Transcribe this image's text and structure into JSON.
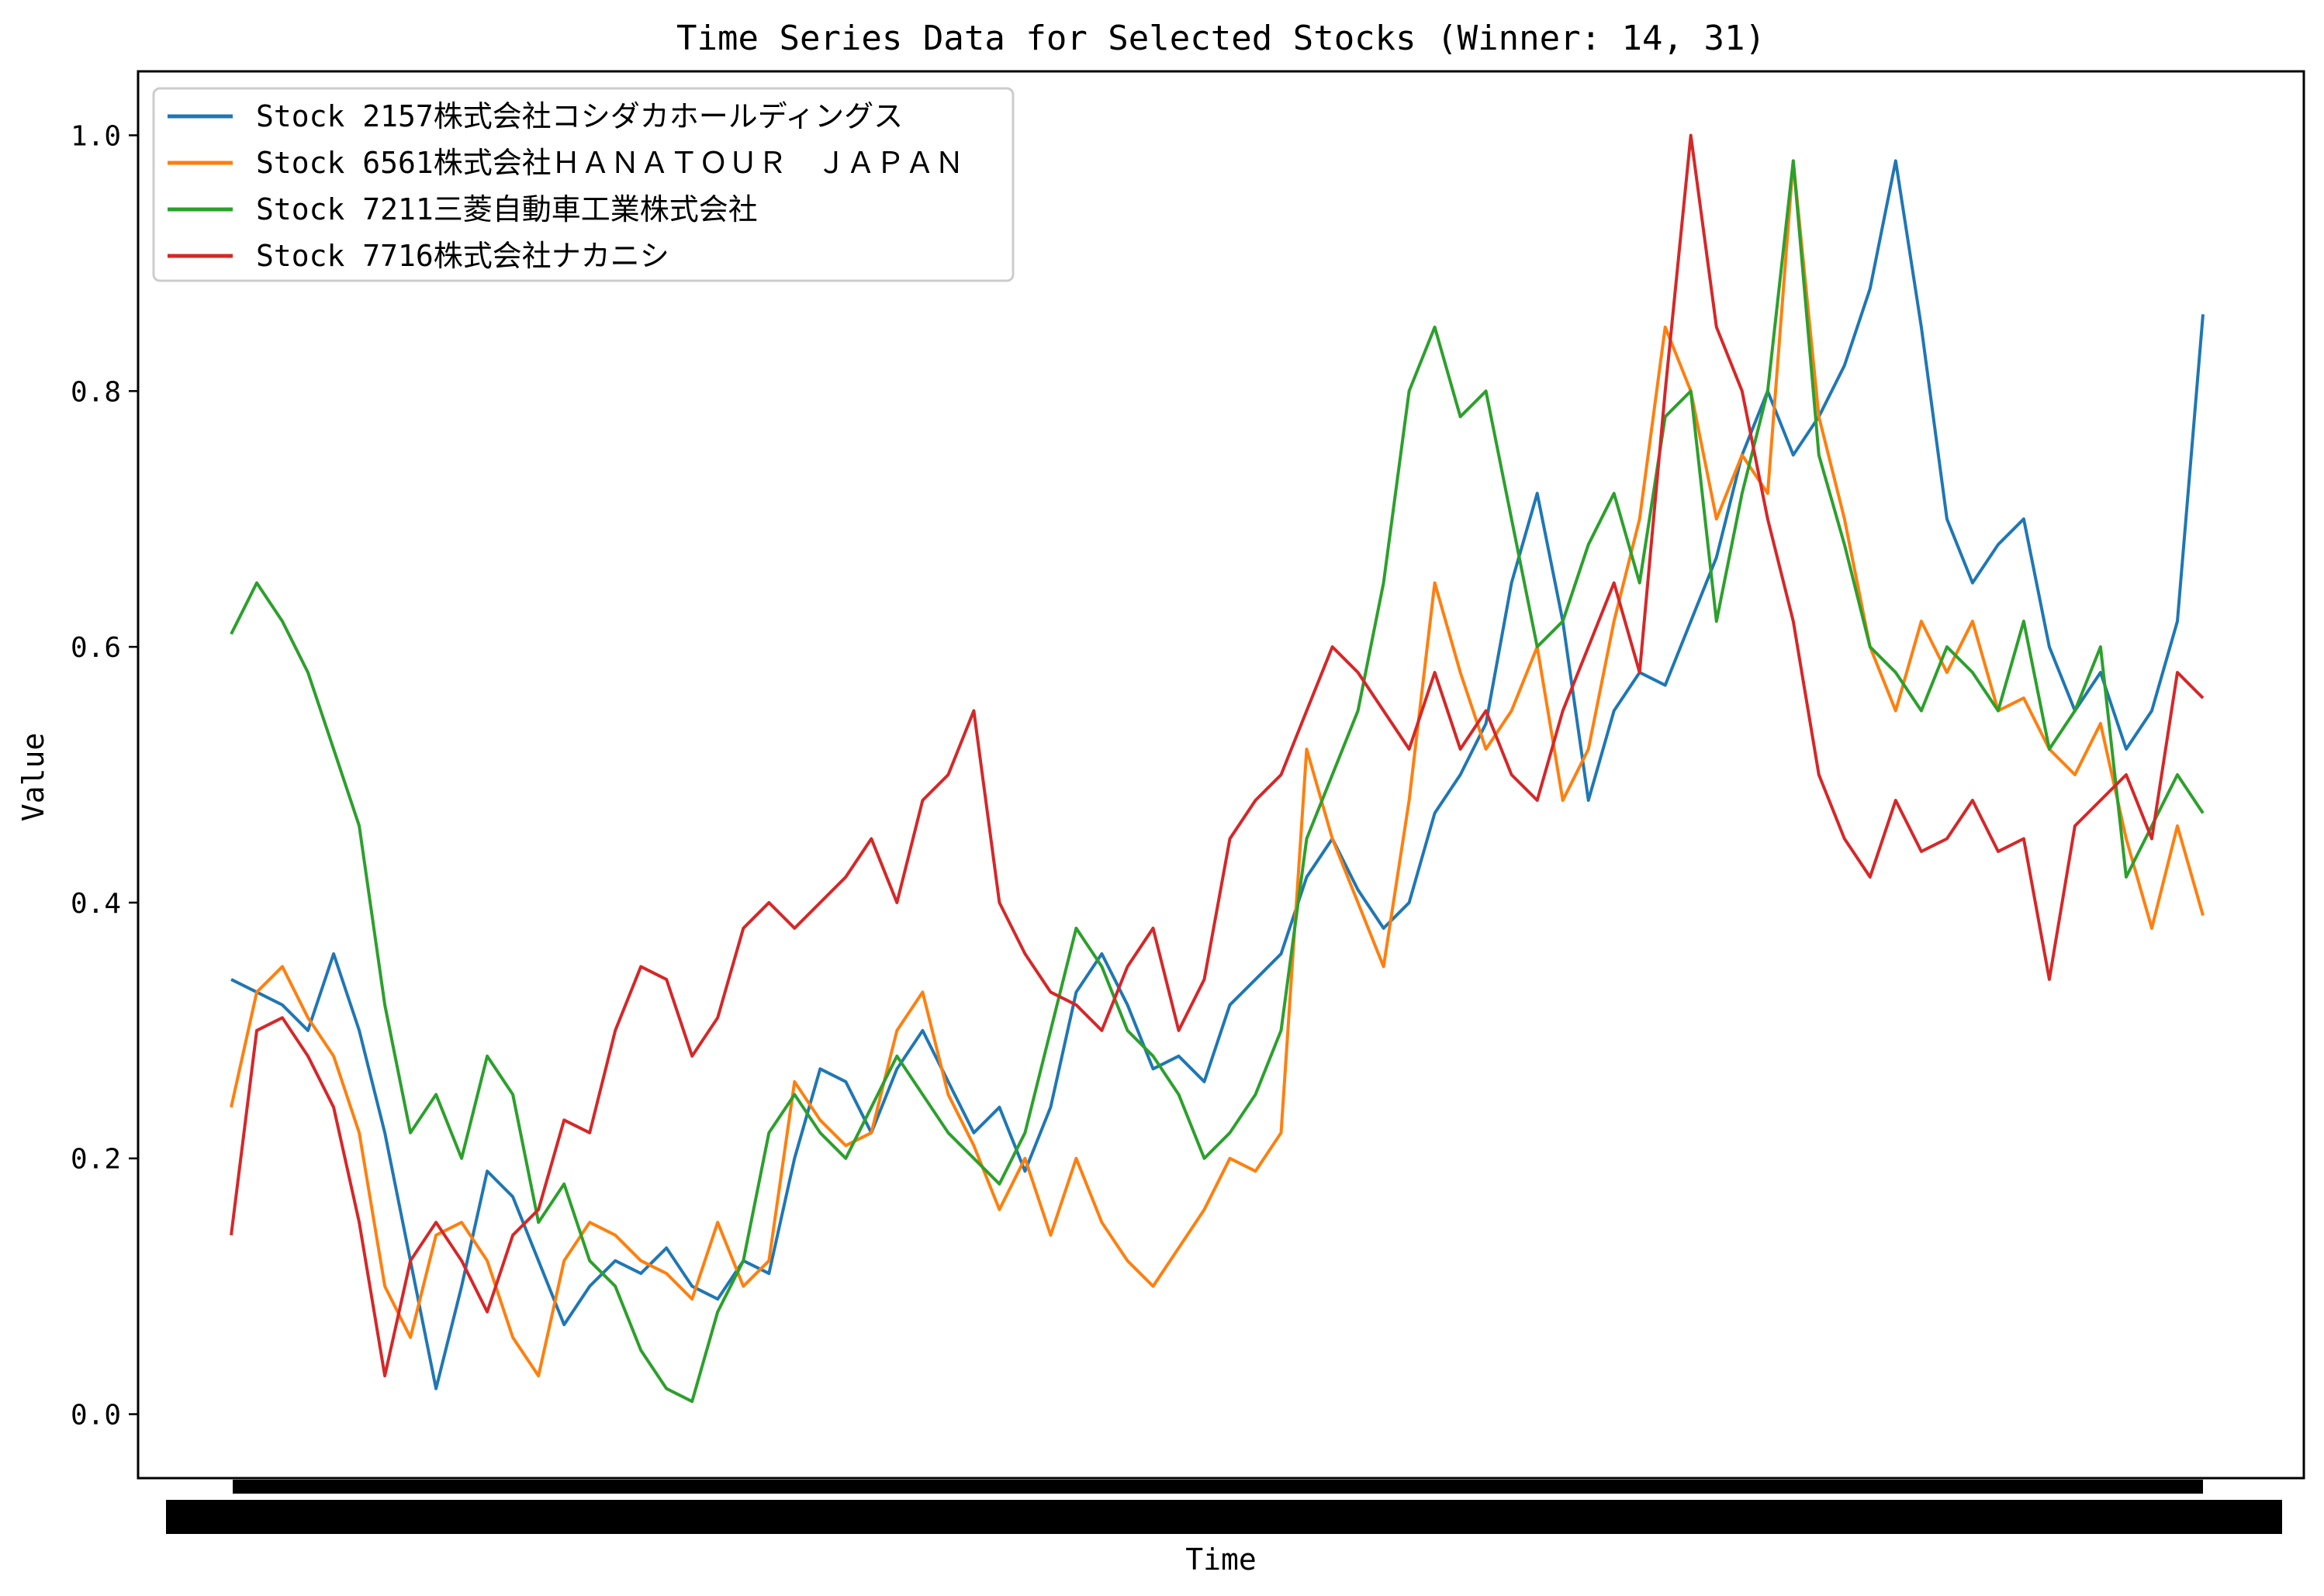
{
  "chart_data": {
    "type": "line",
    "title": "Time Series Data for Selected Stocks (Winner: 14, 31)",
    "xlabel": "Time",
    "ylabel": "Value",
    "ylim": [
      -0.05,
      1.05
    ],
    "yticks": [
      "0.0",
      "0.2",
      "0.4",
      "0.6",
      "0.8",
      "1.0"
    ],
    "x_tick_labels_note": "dense overlapping tick labels rendered as a solid black band",
    "grid": false,
    "legend_position": "top-left",
    "series": [
      {
        "name": "Stock 2157株式会社コシダカホールディングス",
        "color": "#1f77b4",
        "x": [
          0,
          20,
          40,
          60,
          80,
          100,
          120,
          140,
          160,
          180,
          200,
          220,
          240,
          260,
          280,
          300,
          320,
          340,
          360,
          380,
          400,
          420,
          440,
          460,
          480,
          500,
          520,
          540,
          560,
          580,
          600,
          620,
          640,
          660,
          680,
          700,
          720,
          740,
          760,
          780,
          800,
          820,
          840,
          860,
          880,
          900,
          920,
          940,
          960,
          980,
          1000,
          1020,
          1040,
          1060,
          1080,
          1100,
          1120,
          1140,
          1160,
          1180,
          1200,
          1220,
          1240,
          1260,
          1280,
          1300,
          1320,
          1340,
          1360,
          1380,
          1400,
          1420,
          1440,
          1460,
          1480,
          1500,
          1520,
          1540
        ],
        "values": [
          0.34,
          0.33,
          0.32,
          0.3,
          0.36,
          0.3,
          0.22,
          0.12,
          0.02,
          0.1,
          0.19,
          0.17,
          0.12,
          0.07,
          0.1,
          0.12,
          0.11,
          0.13,
          0.1,
          0.09,
          0.12,
          0.11,
          0.2,
          0.27,
          0.26,
          0.22,
          0.27,
          0.3,
          0.26,
          0.22,
          0.24,
          0.19,
          0.24,
          0.33,
          0.36,
          0.32,
          0.27,
          0.28,
          0.26,
          0.32,
          0.34,
          0.36,
          0.42,
          0.45,
          0.41,
          0.38,
          0.4,
          0.47,
          0.5,
          0.54,
          0.65,
          0.72,
          0.62,
          0.48,
          0.55,
          0.58,
          0.57,
          0.62,
          0.67,
          0.75,
          0.8,
          0.75,
          0.78,
          0.82,
          0.88,
          0.98,
          0.85,
          0.7,
          0.65,
          0.68,
          0.7,
          0.6,
          0.55,
          0.58,
          0.52,
          0.55,
          0.62,
          0.86
        ]
      },
      {
        "name": "Stock 6561株式会社ＨＡＮＡＴＯＵＲ　ＪＡＰＡＮ",
        "color": "#ff7f0e",
        "x": [
          0,
          20,
          40,
          60,
          80,
          100,
          120,
          140,
          160,
          180,
          200,
          220,
          240,
          260,
          280,
          300,
          320,
          340,
          360,
          380,
          400,
          420,
          440,
          460,
          480,
          500,
          520,
          540,
          560,
          580,
          600,
          620,
          640,
          660,
          680,
          700,
          720,
          740,
          760,
          780,
          800,
          820,
          840,
          860,
          880,
          900,
          920,
          940,
          960,
          980,
          1000,
          1020,
          1040,
          1060,
          1080,
          1100,
          1120,
          1140,
          1160,
          1180,
          1200,
          1220,
          1240,
          1260,
          1280,
          1300,
          1320,
          1340,
          1360,
          1380,
          1400,
          1420,
          1440,
          1460,
          1480,
          1500,
          1520,
          1540
        ],
        "values": [
          0.24,
          0.33,
          0.35,
          0.31,
          0.28,
          0.22,
          0.1,
          0.06,
          0.14,
          0.15,
          0.12,
          0.06,
          0.03,
          0.12,
          0.15,
          0.14,
          0.12,
          0.11,
          0.09,
          0.15,
          0.1,
          0.12,
          0.26,
          0.23,
          0.21,
          0.22,
          0.3,
          0.33,
          0.25,
          0.21,
          0.16,
          0.2,
          0.14,
          0.2,
          0.15,
          0.12,
          0.1,
          0.13,
          0.16,
          0.2,
          0.19,
          0.22,
          0.52,
          0.45,
          0.4,
          0.35,
          0.48,
          0.65,
          0.58,
          0.52,
          0.55,
          0.6,
          0.48,
          0.52,
          0.62,
          0.7,
          0.85,
          0.8,
          0.7,
          0.75,
          0.72,
          0.98,
          0.78,
          0.7,
          0.6,
          0.55,
          0.62,
          0.58,
          0.62,
          0.55,
          0.56,
          0.52,
          0.5,
          0.54,
          0.45,
          0.38,
          0.46,
          0.39
        ]
      },
      {
        "name": "Stock 7211三菱自動車工業株式会社",
        "color": "#2ca02c",
        "x": [
          0,
          20,
          40,
          60,
          80,
          100,
          120,
          140,
          160,
          180,
          200,
          220,
          240,
          260,
          280,
          300,
          320,
          340,
          360,
          380,
          400,
          420,
          440,
          460,
          480,
          500,
          520,
          540,
          560,
          580,
          600,
          620,
          640,
          660,
          680,
          700,
          720,
          740,
          760,
          780,
          800,
          820,
          840,
          860,
          880,
          900,
          920,
          940,
          960,
          980,
          1000,
          1020,
          1040,
          1060,
          1080,
          1100,
          1120,
          1140,
          1160,
          1180,
          1200,
          1220,
          1240,
          1260,
          1280,
          1300,
          1320,
          1340,
          1360,
          1380,
          1400,
          1420,
          1440,
          1460,
          1480,
          1500,
          1520,
          1540
        ],
        "values": [
          0.61,
          0.65,
          0.62,
          0.58,
          0.52,
          0.46,
          0.32,
          0.22,
          0.25,
          0.2,
          0.28,
          0.25,
          0.15,
          0.18,
          0.12,
          0.1,
          0.05,
          0.02,
          0.01,
          0.08,
          0.12,
          0.22,
          0.25,
          0.22,
          0.2,
          0.24,
          0.28,
          0.25,
          0.22,
          0.2,
          0.18,
          0.22,
          0.3,
          0.38,
          0.35,
          0.3,
          0.28,
          0.25,
          0.2,
          0.22,
          0.25,
          0.3,
          0.45,
          0.5,
          0.55,
          0.65,
          0.8,
          0.85,
          0.78,
          0.8,
          0.7,
          0.6,
          0.62,
          0.68,
          0.72,
          0.65,
          0.78,
          0.8,
          0.62,
          0.72,
          0.8,
          0.98,
          0.75,
          0.68,
          0.6,
          0.58,
          0.55,
          0.6,
          0.58,
          0.55,
          0.62,
          0.52,
          0.55,
          0.6,
          0.42,
          0.46,
          0.5,
          0.47
        ]
      },
      {
        "name": "Stock 7716株式会社ナカニシ",
        "color": "#d62728",
        "x": [
          0,
          20,
          40,
          60,
          80,
          100,
          120,
          140,
          160,
          180,
          200,
          220,
          240,
          260,
          280,
          300,
          320,
          340,
          360,
          380,
          400,
          420,
          440,
          460,
          480,
          500,
          520,
          540,
          560,
          580,
          600,
          620,
          640,
          660,
          680,
          700,
          720,
          740,
          760,
          780,
          800,
          820,
          840,
          860,
          880,
          900,
          920,
          940,
          960,
          980,
          1000,
          1020,
          1040,
          1060,
          1080,
          1100,
          1120,
          1140,
          1160,
          1180,
          1200,
          1220,
          1240,
          1260,
          1280,
          1300,
          1320,
          1340,
          1360,
          1380,
          1400,
          1420,
          1440,
          1460,
          1480,
          1500,
          1520,
          1540
        ],
        "values": [
          0.14,
          0.3,
          0.31,
          0.28,
          0.24,
          0.15,
          0.03,
          0.12,
          0.15,
          0.12,
          0.08,
          0.14,
          0.16,
          0.23,
          0.22,
          0.3,
          0.35,
          0.34,
          0.28,
          0.31,
          0.38,
          0.4,
          0.38,
          0.4,
          0.42,
          0.45,
          0.4,
          0.48,
          0.5,
          0.55,
          0.4,
          0.36,
          0.33,
          0.32,
          0.3,
          0.35,
          0.38,
          0.3,
          0.34,
          0.45,
          0.48,
          0.5,
          0.55,
          0.6,
          0.58,
          0.55,
          0.52,
          0.58,
          0.52,
          0.55,
          0.5,
          0.48,
          0.55,
          0.6,
          0.65,
          0.58,
          0.8,
          1.0,
          0.85,
          0.8,
          0.7,
          0.62,
          0.5,
          0.45,
          0.42,
          0.48,
          0.44,
          0.45,
          0.48,
          0.44,
          0.45,
          0.34,
          0.46,
          0.48,
          0.5,
          0.45,
          0.58,
          0.56
        ]
      }
    ]
  }
}
